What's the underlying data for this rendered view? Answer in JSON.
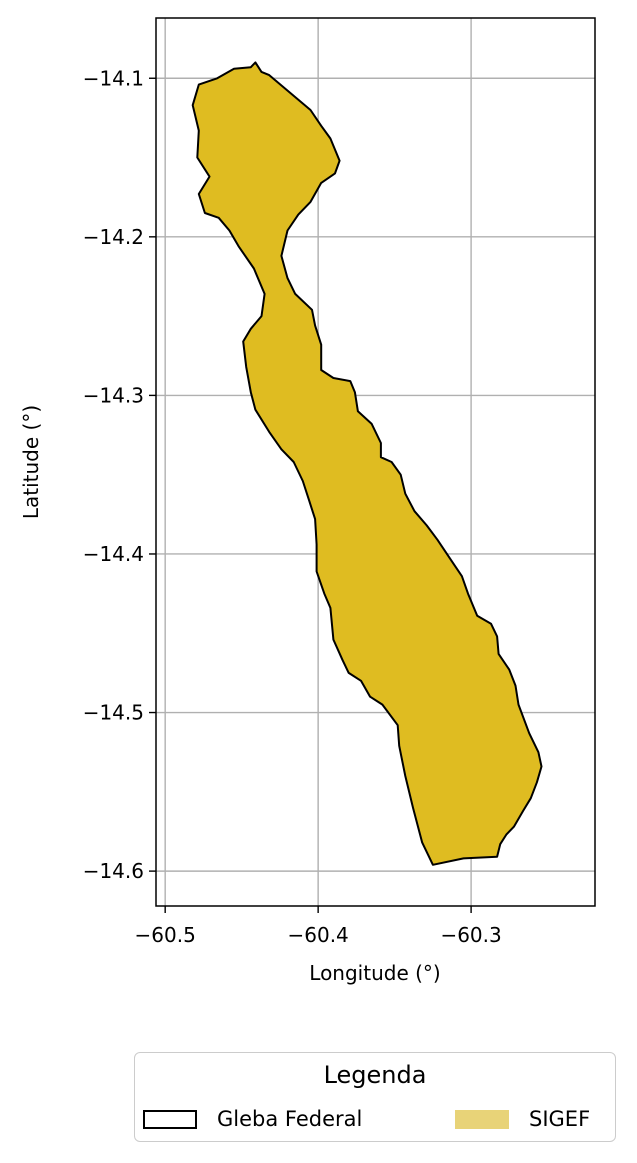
{
  "chart_data": {
    "type": "map",
    "xlabel": "Longitude (°)",
    "ylabel": "Latitude (°)",
    "xlim": [
      -60.506,
      -60.219
    ],
    "ylim": [
      -14.622,
      -14.062
    ],
    "grid": true,
    "x_ticks": [
      {
        "value": -60.5,
        "label": "−60.5"
      },
      {
        "value": -60.4,
        "label": "−60.4"
      },
      {
        "value": -60.3,
        "label": "−60.3"
      }
    ],
    "y_ticks": [
      {
        "value": -14.1,
        "label": "−14.1"
      },
      {
        "value": -14.2,
        "label": "−14.2"
      },
      {
        "value": -14.3,
        "label": "−14.3"
      },
      {
        "value": -14.4,
        "label": "−14.4"
      },
      {
        "value": -14.5,
        "label": "−14.5"
      },
      {
        "value": -14.6,
        "label": "−14.6"
      }
    ],
    "layers": [
      {
        "name": "SIGEF",
        "fill": "#dfbc21",
        "stroke": "#000000",
        "polygon": [
          [
            -60.444,
            -14.093
          ],
          [
            -60.441,
            -14.09
          ],
          [
            -60.437,
            -14.096
          ],
          [
            -60.432,
            -14.098
          ],
          [
            -60.405,
            -14.12
          ],
          [
            -60.398,
            -14.13
          ],
          [
            -60.392,
            -14.138
          ],
          [
            -60.386,
            -14.152
          ],
          [
            -60.389,
            -14.16
          ],
          [
            -60.398,
            -14.166
          ],
          [
            -60.405,
            -14.178
          ],
          [
            -60.413,
            -14.186
          ],
          [
            -60.42,
            -14.196
          ],
          [
            -60.424,
            -14.212
          ],
          [
            -60.42,
            -14.226
          ],
          [
            -60.415,
            -14.236
          ],
          [
            -60.404,
            -14.246
          ],
          [
            -60.402,
            -14.256
          ],
          [
            -60.398,
            -14.268
          ],
          [
            -60.398,
            -14.284
          ],
          [
            -60.39,
            -14.289
          ],
          [
            -60.379,
            -14.291
          ],
          [
            -60.376,
            -14.298
          ],
          [
            -60.374,
            -14.31
          ],
          [
            -60.365,
            -14.318
          ],
          [
            -60.359,
            -14.33
          ],
          [
            -60.359,
            -14.339
          ],
          [
            -60.352,
            -14.342
          ],
          [
            -60.346,
            -14.35
          ],
          [
            -60.343,
            -14.362
          ],
          [
            -60.337,
            -14.373
          ],
          [
            -60.329,
            -14.382
          ],
          [
            -60.322,
            -14.391
          ],
          [
            -60.313,
            -14.404
          ],
          [
            -60.306,
            -14.414
          ],
          [
            -60.302,
            -14.425
          ],
          [
            -60.296,
            -14.439
          ],
          [
            -60.287,
            -14.444
          ],
          [
            -60.283,
            -14.452
          ],
          [
            -60.282,
            -14.463
          ],
          [
            -60.275,
            -14.473
          ],
          [
            -60.271,
            -14.483
          ],
          [
            -60.269,
            -14.495
          ],
          [
            -60.262,
            -14.513
          ],
          [
            -60.256,
            -14.525
          ],
          [
            -60.254,
            -14.534
          ],
          [
            -60.257,
            -14.544
          ],
          [
            -60.261,
            -14.554
          ],
          [
            -60.266,
            -14.562
          ],
          [
            -60.272,
            -14.572
          ],
          [
            -60.277,
            -14.577
          ],
          [
            -60.281,
            -14.583
          ],
          [
            -60.283,
            -14.591
          ],
          [
            -60.305,
            -14.592
          ],
          [
            -60.325,
            -14.596
          ],
          [
            -60.332,
            -14.582
          ],
          [
            -60.338,
            -14.56
          ],
          [
            -60.343,
            -14.54
          ],
          [
            -60.347,
            -14.521
          ],
          [
            -60.348,
            -14.508
          ],
          [
            -60.358,
            -14.495
          ],
          [
            -60.366,
            -14.49
          ],
          [
            -60.372,
            -14.48
          ],
          [
            -60.38,
            -14.475
          ],
          [
            -60.384,
            -14.467
          ],
          [
            -60.39,
            -14.454
          ],
          [
            -60.392,
            -14.434
          ],
          [
            -60.396,
            -14.425
          ],
          [
            -60.401,
            -14.411
          ],
          [
            -60.401,
            -14.394
          ],
          [
            -60.402,
            -14.378
          ],
          [
            -60.406,
            -14.366
          ],
          [
            -60.41,
            -14.354
          ],
          [
            -60.416,
            -14.342
          ],
          [
            -60.424,
            -14.334
          ],
          [
            -60.432,
            -14.323
          ],
          [
            -60.441,
            -14.309
          ],
          [
            -60.444,
            -14.298
          ],
          [
            -60.447,
            -14.282
          ],
          [
            -60.449,
            -14.266
          ],
          [
            -60.444,
            -14.258
          ],
          [
            -60.437,
            -14.25
          ],
          [
            -60.435,
            -14.236
          ],
          [
            -60.442,
            -14.22
          ],
          [
            -60.452,
            -14.206
          ],
          [
            -60.458,
            -14.196
          ],
          [
            -60.465,
            -14.188
          ],
          [
            -60.474,
            -14.185
          ],
          [
            -60.478,
            -14.173
          ],
          [
            -60.471,
            -14.162
          ],
          [
            -60.479,
            -14.15
          ],
          [
            -60.478,
            -14.133
          ],
          [
            -60.482,
            -14.117
          ],
          [
            -60.478,
            -14.104
          ],
          [
            -60.466,
            -14.1
          ],
          [
            -60.455,
            -14.094
          ],
          [
            -60.444,
            -14.093
          ]
        ]
      }
    ]
  },
  "legend": {
    "title": "Legenda",
    "items": [
      {
        "label": "Gleba Federal",
        "fill": "#ffffff",
        "stroke": "#000000"
      },
      {
        "label": "SIGEF",
        "fill": "#e8d378",
        "stroke": "#e8d378"
      }
    ]
  }
}
